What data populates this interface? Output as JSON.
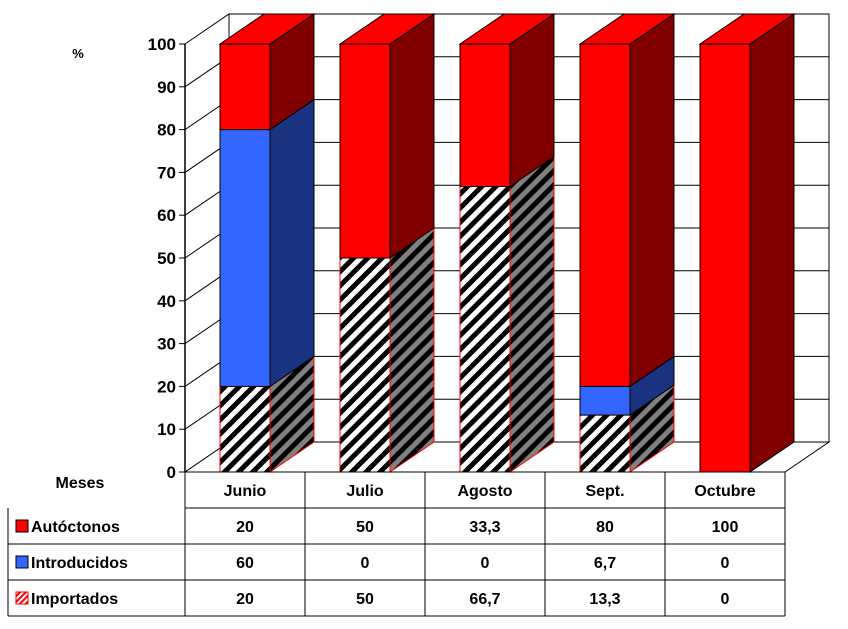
{
  "chart_data": {
    "type": "bar",
    "stacked": true,
    "three_d": true,
    "ylabel": "%",
    "xlabel": "Meses",
    "ylim": [
      0,
      100
    ],
    "yticks": [
      0,
      10,
      20,
      30,
      40,
      50,
      60,
      70,
      80,
      90,
      100
    ],
    "grid": true,
    "categories": [
      "Junio",
      "Julio",
      "Agosto",
      "Sept.",
      "Octubre"
    ],
    "series": [
      {
        "name": "Importados",
        "values": [
          20,
          50,
          66.7,
          13.3,
          0
        ],
        "color": "#ffffff",
        "pattern": "diagonal-hatch",
        "side_color": "#808080"
      },
      {
        "name": "Introducidos",
        "values": [
          60,
          0,
          0,
          6.7,
          0
        ],
        "color": "#3366ff",
        "side_color": "#1a3380"
      },
      {
        "name": "Autóctonos",
        "values": [
          20,
          50,
          33.3,
          80,
          100
        ],
        "color": "#ff0000",
        "side_color": "#800000"
      }
    ],
    "table": {
      "rows": [
        {
          "label": "Autóctonos",
          "values": [
            "20",
            "50",
            "33,3",
            "80",
            "100"
          ]
        },
        {
          "label": "Introducidos",
          "values": [
            "60",
            "0",
            "0",
            "6,7",
            "0"
          ]
        },
        {
          "label": "Importados",
          "values": [
            "20",
            "50",
            "66,7",
            "13,3",
            "0"
          ]
        }
      ]
    }
  }
}
